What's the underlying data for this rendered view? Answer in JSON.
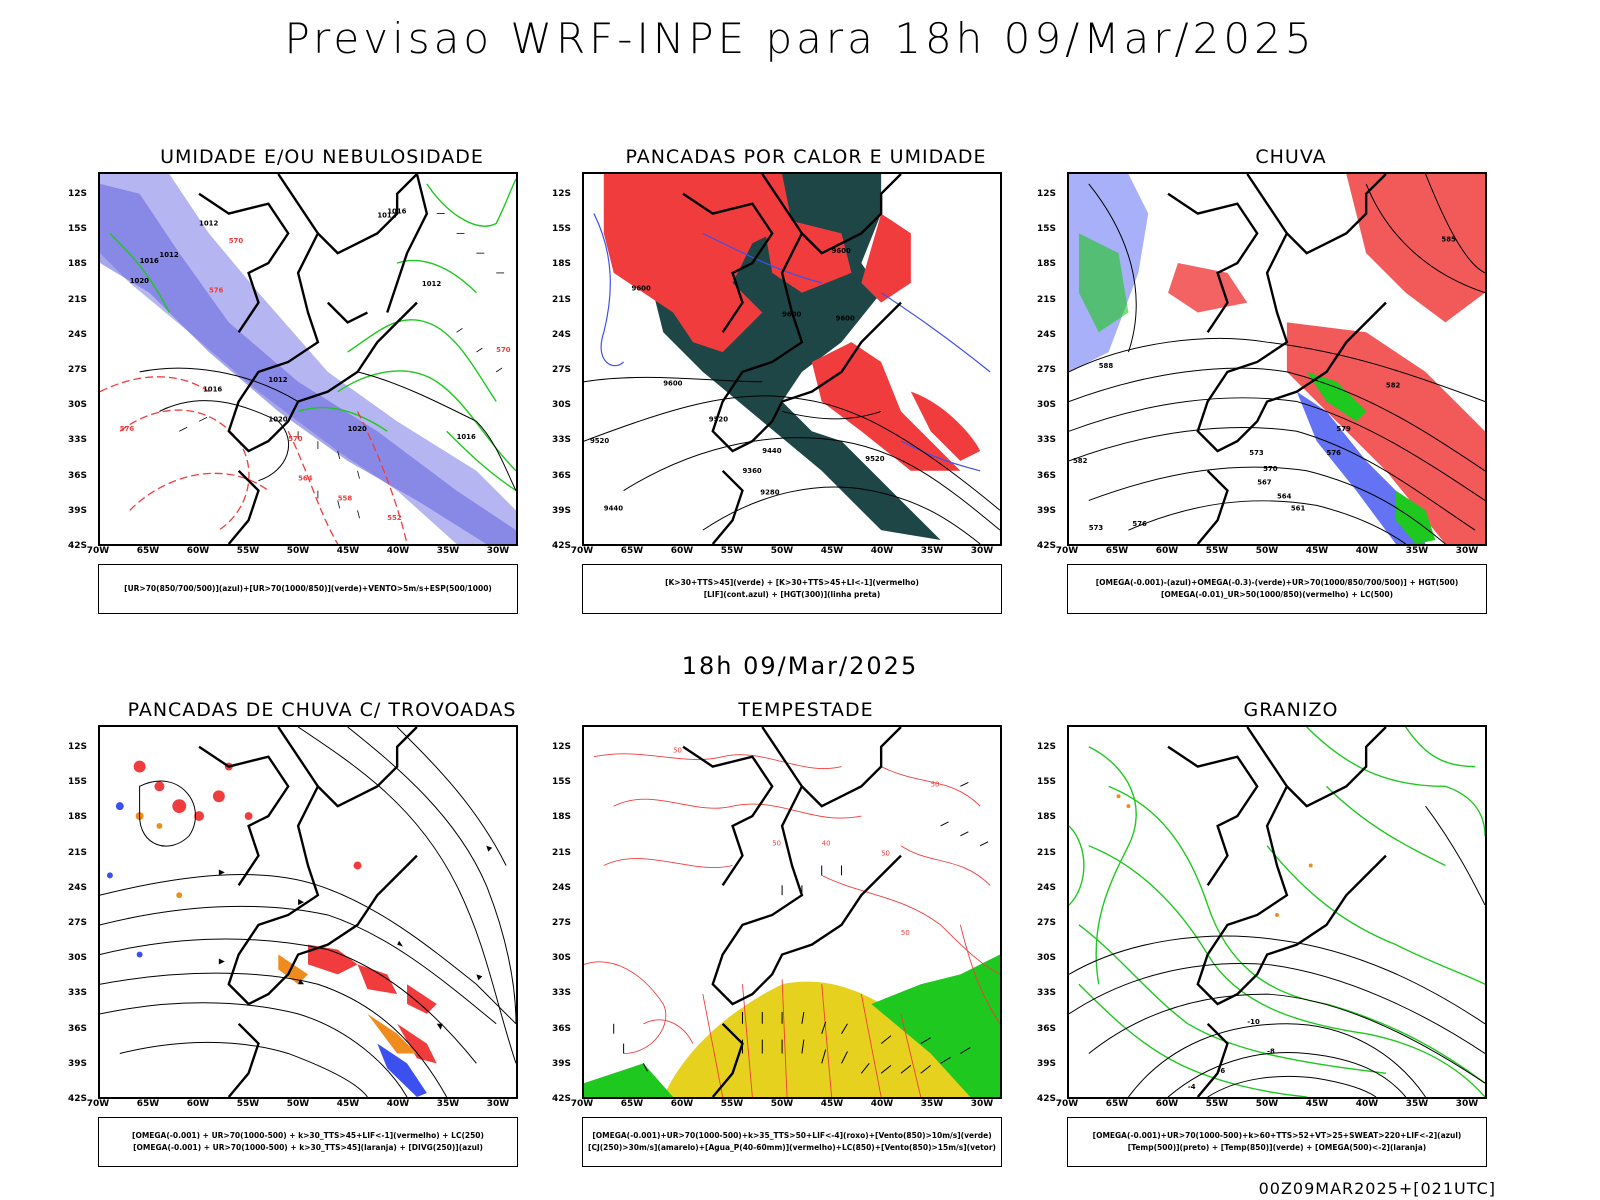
{
  "header": {
    "title": "Previsao WRF-INPE  para 18h 09/Mar/2025"
  },
  "middle": {
    "title": "18h 09/Mar/2025"
  },
  "footer": {
    "run": "00Z09MAR2025+[021UTC]"
  },
  "axes": {
    "lat": [
      "12S",
      "15S",
      "18S",
      "21S",
      "24S",
      "27S",
      "30S",
      "33S",
      "36S",
      "39S",
      "42S"
    ],
    "lon": [
      "70W",
      "65W",
      "60W",
      "55W",
      "50W",
      "45W",
      "40W",
      "35W",
      "30W"
    ]
  },
  "panels": [
    {
      "title": "UMIDADE E/OU NEBULOSIDADE",
      "legend": [
        "[UR>70(850/700/500)](azul)+[UR>70(1000/850)](verde)+VENTO>5m/s+ESP(500/1000)"
      ],
      "contour_labels": [
        "1012",
        "1012",
        "1016",
        "1020",
        "1012",
        "1012",
        "1016",
        "1020",
        "1016",
        "1020",
        "1012",
        "1016",
        "570",
        "570",
        "576",
        "576",
        "570",
        "564",
        "558",
        "552"
      ]
    },
    {
      "title": "PANCADAS POR CALOR E UMIDADE",
      "legend": [
        "[K>30+TTS>45](verde) + [K>30+TTS>45+LI<-1](vermelho)",
        "[LIF](cont.azul) + [HGT(300)](linha preta)"
      ],
      "contour_labels": [
        "9600",
        "9600",
        "9600",
        "9600",
        "9600",
        "9520",
        "9520",
        "9440",
        "9360",
        "9280",
        "9440",
        "9520"
      ]
    },
    {
      "title": "CHUVA",
      "legend": [
        "[OMEGA(-0.001)-(azul)+OMEGA(-0.3)-(verde)+UR>70(1000/850/700/500)] + HGT(500)",
        "[OMEGA(-0.01)_UR>50(1000/850)(vermelho) + LC(500)"
      ],
      "contour_labels": [
        "585",
        "588",
        "582",
        "579",
        "576",
        "573",
        "570",
        "567",
        "564",
        "561",
        "573",
        "576",
        "582"
      ]
    },
    {
      "title": "PANCADAS DE CHUVA C/ TROVOADAS",
      "legend": [
        "[OMEGA(-0.001) + UR>70(1000-500) + k>30_TTS>45+LIF<-1](vermelho) + LC(250)",
        "[OMEGA(-0.001) + UR>70(1000-500) + k>30_TTS>45](laranja) + [DIVG(250)](azul)"
      ],
      "contour_labels": []
    },
    {
      "title": "TEMPESTADE",
      "legend": [
        "[OMEGA(-0.001)+UR>70(1000-500)+k>35_TTS>50+LIF<-4](roxo)+[Vento(850)>10m/s](verde)",
        "[CJ(250)>30m/s](amarelo)+[Agua_P(40-60mm)](vermelho)+LC(850)+[Vento(850)>15m/s](vetor)"
      ],
      "contour_labels": [
        "50",
        "50",
        "50",
        "50",
        "40",
        "50"
      ]
    },
    {
      "title": "GRANIZO",
      "legend": [
        "[OMEGA(-0.001)+UR>70(1000-500)+k>60+TTS>52+VT>25+SWEAT>220+LIF<-2](azul)",
        "[Temp(500)](preto) + [Temp(850)](verde) + [OMEGA(500)<-2](laranja)"
      ],
      "contour_labels": [
        "-10",
        "-8",
        "-6",
        "-4"
      ]
    }
  ],
  "colors": {
    "red": "#f03c3c",
    "blue": "#3c50f0",
    "green": "#1ec81e",
    "darkteal": "#1e4646",
    "lavender": "#a8a8ee",
    "yellow": "#e6d21e",
    "orange": "#f08c1e",
    "purple": "#a020c8"
  }
}
